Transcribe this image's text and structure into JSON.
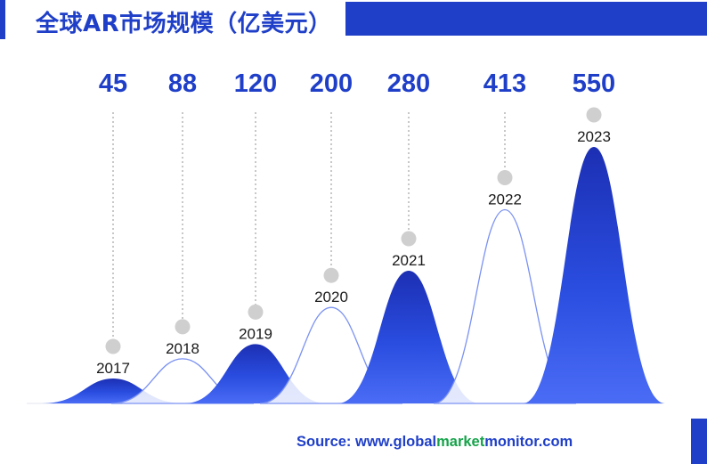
{
  "title": "全球AR市场规模（亿美元）",
  "source": {
    "prefix": "Source: www.",
    "part_global": "global",
    "part_market": "market",
    "part_monitor": "monitor",
    "suffix": ".com"
  },
  "colors": {
    "accent": "#1f3fc8",
    "highlight": "#16a34a",
    "connector": "#c8c8c8"
  },
  "chart_data": {
    "type": "area",
    "title": "全球AR市场规模（亿美元）",
    "unit": "亿美元",
    "categories": [
      "2017",
      "2018",
      "2019",
      "2020",
      "2021",
      "2022",
      "2023"
    ],
    "values": [
      45,
      88,
      120,
      200,
      280,
      413,
      550
    ],
    "styles": [
      "filled",
      "outline",
      "filled",
      "outline",
      "filled",
      "outline",
      "filled"
    ]
  }
}
